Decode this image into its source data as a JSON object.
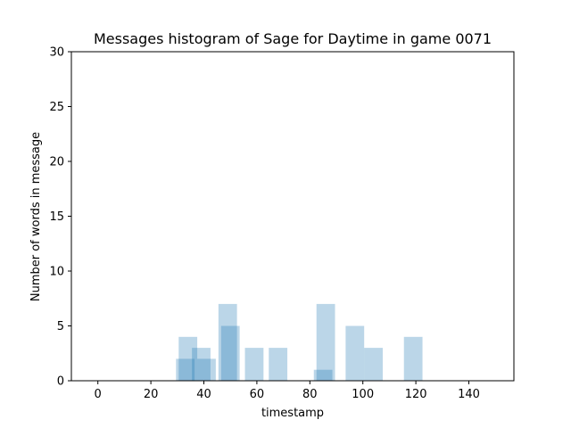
{
  "chart_data": {
    "type": "bar",
    "title": "Messages histogram of Sage for Daytime in game 0071",
    "xlabel": "timestamp",
    "ylabel": "Number of words in message",
    "xlim": [
      -10,
      157
    ],
    "ylim": [
      0,
      30
    ],
    "x_ticks": [
      0,
      20,
      40,
      60,
      80,
      100,
      120,
      140
    ],
    "y_ticks": [
      0,
      5,
      10,
      15,
      20,
      25,
      30
    ],
    "grid": false,
    "bar_color": "#1f77b4",
    "bar_opacity": 0.3,
    "bar_width": 7,
    "bars": [
      {
        "x": 33,
        "y": 2
      },
      {
        "x": 34,
        "y": 4
      },
      {
        "x": 39,
        "y": 3
      },
      {
        "x": 41,
        "y": 2
      },
      {
        "x": 49,
        "y": 7
      },
      {
        "x": 50,
        "y": 5
      },
      {
        "x": 59,
        "y": 3
      },
      {
        "x": 68,
        "y": 3
      },
      {
        "x": 85,
        "y": 1
      },
      {
        "x": 86,
        "y": 7
      },
      {
        "x": 97,
        "y": 5
      },
      {
        "x": 104,
        "y": 3
      },
      {
        "x": 119,
        "y": 4
      }
    ]
  }
}
